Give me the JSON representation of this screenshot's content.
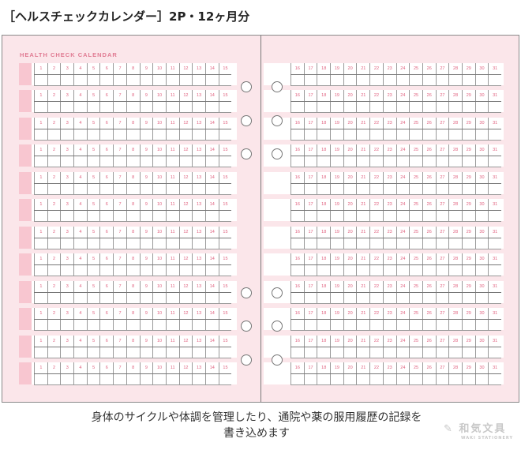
{
  "title": "［ヘルスチェックカレンダー］2P・12ヶ月分",
  "calendar_title": "HEALTH CHECK CALENDAR",
  "rows": 12,
  "left_days": [
    "1",
    "2",
    "3",
    "4",
    "5",
    "6",
    "7",
    "8",
    "9",
    "10",
    "11",
    "12",
    "13",
    "14",
    "15"
  ],
  "right_days": [
    "16",
    "17",
    "18",
    "19",
    "20",
    "21",
    "22",
    "23",
    "24",
    "25",
    "26",
    "27",
    "28",
    "29",
    "30",
    "31"
  ],
  "caption_line1": "身体のサイクルや体調を管理したり、通院や薬の服用履歴の記録を",
  "caption_line2": "書き込めます",
  "logo": {
    "main": "和気文具",
    "sub": "WAKI STATIONERY"
  },
  "colors": {
    "page_bg": "#fbe6ea",
    "accent": "#e0607e",
    "block": "#f8c6d0"
  }
}
